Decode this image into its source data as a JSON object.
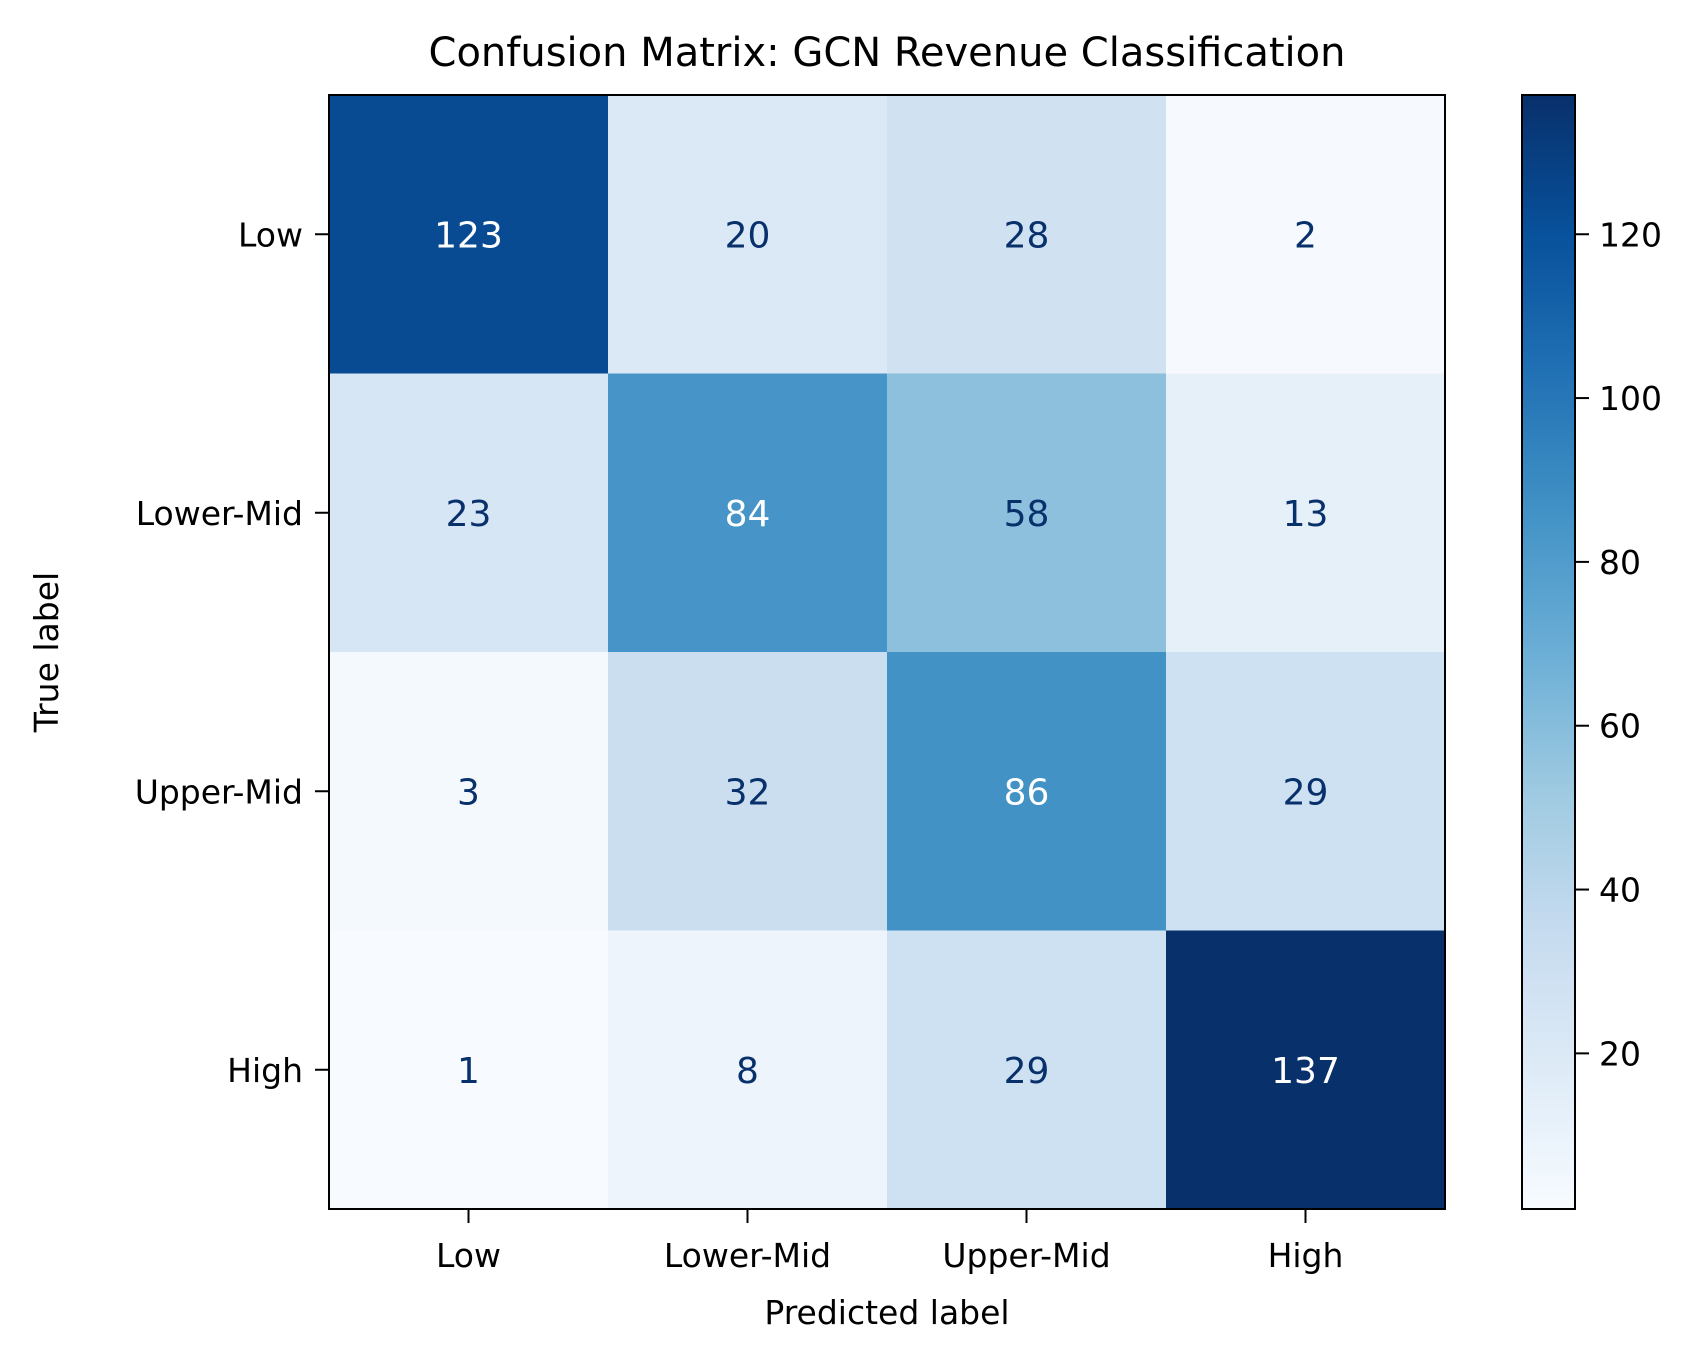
{
  "chart_data": {
    "type": "heatmap",
    "title": "Confusion Matrix: GCN Revenue Classification",
    "xlabel": "Predicted label",
    "ylabel": "True label",
    "x_categories": [
      "Low",
      "Lower-Mid",
      "Upper-Mid",
      "High"
    ],
    "y_categories": [
      "Low",
      "Lower-Mid",
      "Upper-Mid",
      "High"
    ],
    "values": [
      [
        123,
        20,
        28,
        2
      ],
      [
        23,
        84,
        58,
        13
      ],
      [
        3,
        32,
        86,
        29
      ],
      [
        1,
        8,
        29,
        137
      ]
    ],
    "colormap": "Blues",
    "color_range": [
      1,
      137
    ],
    "colorbar_ticks": [
      20,
      40,
      60,
      80,
      100,
      120
    ],
    "text_colors": {
      "light": "#ffffff",
      "dark": "#08306b"
    }
  }
}
